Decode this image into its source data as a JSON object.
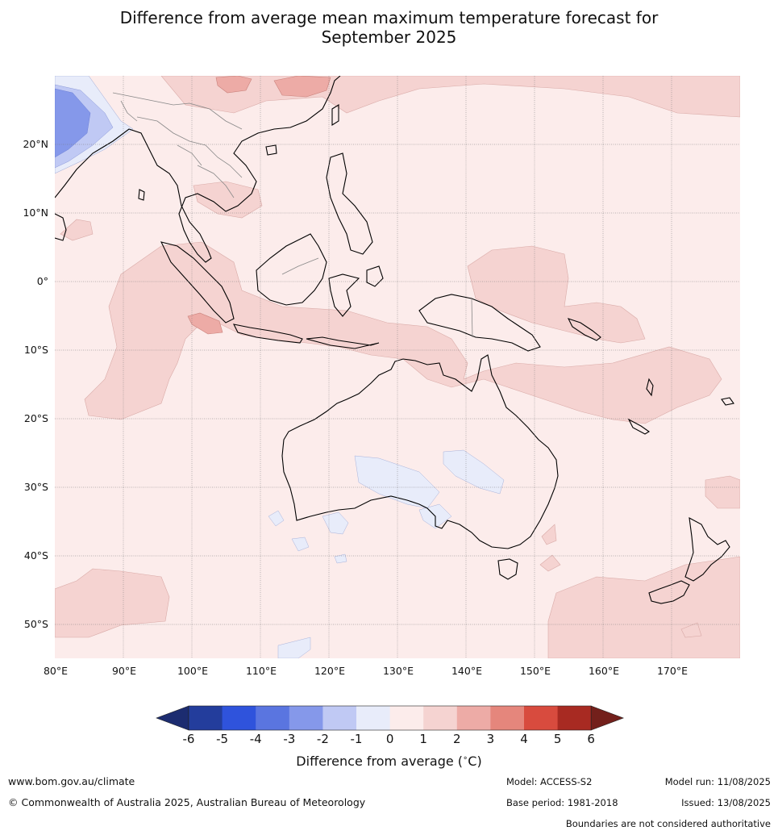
{
  "title_line1": "Difference from average mean maximum temperature forecast for",
  "title_line2": "September 2025",
  "map": {
    "lon_ticks": [
      "80°E",
      "90°E",
      "100°E",
      "110°E",
      "120°E",
      "130°E",
      "140°E",
      "150°E",
      "160°E",
      "170°E"
    ],
    "lat_ticks": [
      "20°N",
      "10°N",
      "0°",
      "10°S",
      "20°S",
      "30°S",
      "40°S",
      "50°S"
    ],
    "lon_range": [
      80,
      180
    ],
    "lat_range": [
      -55,
      30
    ]
  },
  "colorbar": {
    "ticks": [
      "-6",
      "-5",
      "-4",
      "-3",
      "-2",
      "-1",
      "0",
      "1",
      "2",
      "3",
      "4",
      "5",
      "6"
    ],
    "colors": [
      "#233d9c",
      "#2f53dc",
      "#5a75e0",
      "#8598ea",
      "#c0c9f4",
      "#e8ecfa",
      "#fceceb",
      "#f5d3d1",
      "#edaba6",
      "#e5867c",
      "#d84b3e",
      "#a82a22"
    ],
    "low_extend_color": "#1c2c70",
    "high_extend_color": "#73201b",
    "label": "Difference from average (",
    "label_unit": "C)"
  },
  "footer": {
    "website": "www.bom.gov.au/climate",
    "copyright": "© Commonwealth of Australia 2025, Australian Bureau of Meteorology",
    "model": "Model: ACCESS-S2",
    "base_period": "Base period: 1981-2018",
    "model_run": "Model run: 11/08/2025",
    "issued": "Issued: 13/08/2025",
    "disclaimer": "Boundaries are not considered authoritative"
  }
}
